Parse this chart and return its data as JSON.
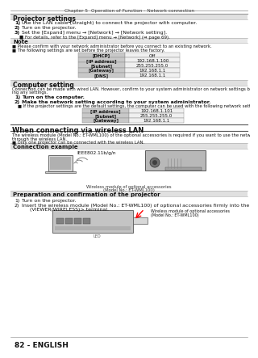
{
  "page_title": "Chapter 5  Operation of Function - Network connection",
  "bg_color": "#ffffff",
  "section_bg": "#e0e0e0",
  "note_bg": "#e8e8e8",
  "table_col1_bg": "#c8c8c8",
  "table_col2_bg": "#f0f0f0",
  "section1_title": "Projector settings",
  "section1_items": [
    [
      "1)",
      "Use the LAN cable (Straight) to connect the projector with computer."
    ],
    [
      "2)",
      "Turn on the projector."
    ],
    [
      "3)",
      "Set the [Expand] menu → [Network] → [Network setting]."
    ]
  ],
  "section1_sub": "■ For details, refer to the [Expand] menu → [Network] (⇒ page 69).",
  "note_title": "Note",
  "note_items": [
    "■ Please confirm with your network administrator before you connect to an existing network.",
    "■ The following settings are set before the projector leaves the factory."
  ],
  "table1": [
    [
      "[DHCP]",
      "Off"
    ],
    [
      "[IP address]",
      "192.168.1.100"
    ],
    [
      "[Subnet]",
      "255.255.255.0"
    ],
    [
      "[Gateway]",
      "192.168.1.1"
    ],
    [
      "[DNS]",
      "192.168.1.1"
    ]
  ],
  "section2_title": "Computer setting",
  "section2_intro": [
    "Connection can be made with wired LAN. However, confirm to your system administrator on network settings before chang-",
    "ing any settings."
  ],
  "section2_items": [
    [
      "1)",
      "Turn on the computer."
    ],
    [
      "2)",
      "Make the network setting according to your system administrator."
    ]
  ],
  "section2_sub": "■ If the projector settings are the default settings, the computer can be used with the following network settings.",
  "table2": [
    [
      "[IP address]",
      "192.168.1.101"
    ],
    [
      "[Subnet]",
      "255.255.255.0"
    ],
    [
      "[Gateway]",
      "192.168.1.1"
    ]
  ],
  "section3_title": "When connecting via wireless LAN",
  "section3_intro": [
    "The wireless module (Model No.: ET-WML100) of the optional accessories is required if you want to use the network function",
    "through the wireless LAN."
  ],
  "section3_note": "■ Only one projector can be connected with the wireless LAN.",
  "section4_title": "Connection example",
  "ieee_label": "IEEE802.11b/g/n",
  "wireless_caption1": "Wireless module of optional accessories",
  "wireless_caption2": "(Model No.: ET-WML100)",
  "section5_title": "Preparation and confirmation of the projector",
  "section5_items": [
    [
      "1)",
      "Turn on the projector."
    ],
    [
      "2)",
      "Insert the wireless module (Model No.: ET-WML100) of optional accessories firmly into the <USB A"
    ]
  ],
  "section5_item2_cont": "     (VIEWER/WIRELESS)> terminal.",
  "wireless_caption3": "Wireless module of optional accessories",
  "wireless_caption4": "(Model No.: ET-WML100)",
  "led_label": "LED",
  "footer": "82 - ENGLISH"
}
